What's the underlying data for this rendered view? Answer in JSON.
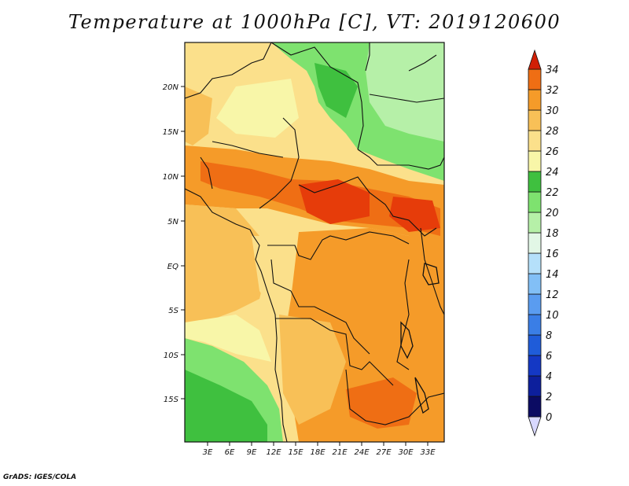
{
  "title": "Temperature at 1000hPa [C], VT: 2019120600",
  "footer": "GrADS: IGES/COLA",
  "map": {
    "lon_labels": [
      "3E",
      "6E",
      "9E",
      "12E",
      "15E",
      "18E",
      "21E",
      "24E",
      "27E",
      "30E",
      "33E"
    ],
    "lat_labels": [
      "20N",
      "15N",
      "10N",
      "5N",
      "EQ",
      "5S",
      "10S",
      "15S"
    ],
    "lon_range": [
      0,
      35
    ],
    "lat_range": [
      -20,
      25
    ],
    "variable": "Temperature at 1000hPa",
    "units": "C"
  },
  "colorbar": {
    "levels": [
      "0",
      "2",
      "4",
      "6",
      "8",
      "10",
      "12",
      "14",
      "16",
      "18",
      "20",
      "22",
      "24",
      "26",
      "28",
      "30",
      "32",
      "34"
    ],
    "colors": [
      "#0b0b63",
      "#0d1f9c",
      "#1438c4",
      "#1f5cd9",
      "#3a7ee6",
      "#5a9cf0",
      "#82bff6",
      "#b5e0fa",
      "#e2f7e6",
      "#b6f0a8",
      "#7ee26f",
      "#3fc03f",
      "#f8f6a8",
      "#fbe08b",
      "#f8c057",
      "#f59b29",
      "#ef6e14",
      "#e63c0a",
      "#d11f06"
    ],
    "orientation": "vertical",
    "position": "right"
  }
}
